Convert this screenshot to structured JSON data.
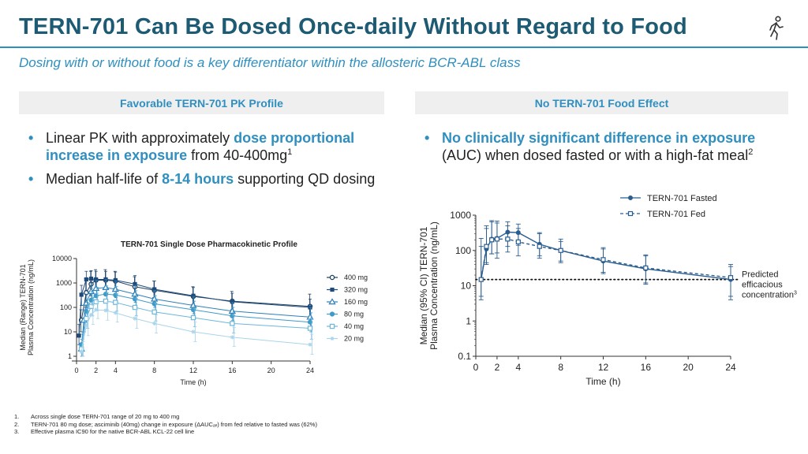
{
  "title": "TERN-701 Can Be Dosed Once-daily Without Regard to Food",
  "subtitle": "Dosing with or without food is a key differentiator within the allosteric BCR-ABL class",
  "icon": "walking-person-icon",
  "colors": {
    "title": "#1d5a73",
    "accent": "#2f8fc1",
    "panel": "#efefef"
  },
  "left_panel": {
    "header": "Favorable TERN-701 PK Profile",
    "bullet1": {
      "a": "Linear PK with approximately ",
      "b": "dose proportional increase in exposure",
      "c": " from 40-400mg",
      "sup": "1"
    },
    "bullet2": {
      "a": "Median half-life of ",
      "b": "8-14 hours",
      "c": " supporting QD dosing"
    }
  },
  "right_panel": {
    "header": "No TERN-701 Food Effect",
    "bullet1": {
      "b": "No clinically significant difference in exposure",
      "c": " (AUC) when dosed fasted or with a high-fat meal",
      "sup": "2"
    }
  },
  "chart_data": [
    {
      "type": "line",
      "title": "TERN-701 Single Dose Pharmacokinetic Profile",
      "xlabel": "Time (h)",
      "ylabel_line1": "Median (Range) TERN-701",
      "ylabel_line2": "Plasma Concentration (ng/mL)",
      "y_scale": "log",
      "xlim": [
        0,
        24
      ],
      "ylim": [
        1,
        10000
      ],
      "xticks": [
        "0",
        "2",
        "4",
        "8",
        "12",
        "16",
        "20",
        "24"
      ],
      "yticks": [
        "1",
        "10",
        "100",
        "1000",
        "10000"
      ],
      "legend_position": "right",
      "series": [
        {
          "name": "400 mg",
          "color": "#1d3f5e",
          "marker": "circle-open",
          "x": [
            0.5,
            1,
            1.5,
            2,
            3,
            4,
            6,
            8,
            12,
            16,
            24
          ],
          "y": [
            30,
            400,
            900,
            1300,
            1300,
            1200,
            700,
            500,
            280,
            180,
            110
          ],
          "lo": [
            10,
            100,
            300,
            500,
            600,
            600,
            350,
            250,
            130,
            80,
            40
          ],
          "hi": [
            80,
            1500,
            3000,
            3500,
            3500,
            3000,
            1800,
            1200,
            700,
            450,
            350
          ]
        },
        {
          "name": "320 mg",
          "color": "#1d4a7a",
          "marker": "square-filled",
          "x": [
            0.25,
            0.5,
            1,
            1.5,
            2,
            3,
            4,
            6,
            8,
            12,
            16,
            24
          ],
          "y": [
            7,
            330,
            1400,
            1500,
            1400,
            1400,
            1300,
            900,
            550,
            300,
            170,
            100
          ],
          "lo": [
            3,
            120,
            500,
            600,
            600,
            600,
            550,
            400,
            250,
            140,
            80,
            40
          ],
          "hi": [
            20,
            800,
            3000,
            3200,
            3000,
            3000,
            2800,
            2000,
            1200,
            650,
            380,
            220
          ]
        },
        {
          "name": "160 mg",
          "color": "#2f7fb8",
          "marker": "triangle-open",
          "x": [
            0.5,
            0.75,
            1,
            1.5,
            2,
            3,
            4,
            6,
            8,
            12,
            16,
            24
          ],
          "y": [
            2,
            30,
            150,
            450,
            600,
            650,
            550,
            350,
            220,
            120,
            70,
            40
          ],
          "lo": [
            1,
            10,
            60,
            180,
            250,
            300,
            250,
            160,
            100,
            55,
            30,
            15
          ],
          "hi": [
            5,
            80,
            350,
            1000,
            1300,
            1400,
            1200,
            800,
            500,
            280,
            160,
            100
          ]
        },
        {
          "name": "80 mg",
          "color": "#3f9ac8",
          "marker": "circle-filled",
          "x": [
            0.5,
            1,
            1.5,
            2,
            3,
            4,
            6,
            8,
            12,
            16,
            24
          ],
          "y": [
            3,
            70,
            200,
            300,
            350,
            320,
            220,
            140,
            80,
            45,
            25
          ],
          "lo": [
            1.5,
            30,
            90,
            140,
            160,
            150,
            100,
            65,
            35,
            20,
            10
          ],
          "hi": [
            8,
            160,
            450,
            650,
            750,
            700,
            480,
            300,
            180,
            100,
            60
          ]
        },
        {
          "name": "40 mg",
          "color": "#6cb7db",
          "marker": "square-open",
          "x": [
            0.5,
            1,
            1.5,
            2,
            3,
            4,
            6,
            8,
            12,
            16,
            24
          ],
          "y": [
            2,
            35,
            110,
            170,
            180,
            160,
            100,
            65,
            38,
            22,
            14
          ],
          "lo": [
            1,
            14,
            45,
            75,
            80,
            70,
            45,
            28,
            16,
            9,
            5
          ],
          "hi": [
            5,
            90,
            260,
            380,
            400,
            360,
            230,
            150,
            90,
            50,
            35
          ]
        },
        {
          "name": "20 mg",
          "color": "#a9d4ec",
          "marker": "star",
          "x": [
            0.5,
            1,
            1.5,
            2,
            3,
            4,
            6,
            8,
            12,
            16,
            24
          ],
          "y": [
            1.5,
            18,
            50,
            80,
            75,
            60,
            35,
            22,
            10,
            6,
            3
          ],
          "lo": [
            1,
            7,
            20,
            35,
            30,
            25,
            14,
            9,
            4,
            2.5,
            1.2
          ],
          "hi": [
            4,
            45,
            120,
            180,
            170,
            140,
            80,
            50,
            25,
            15,
            8
          ]
        }
      ]
    },
    {
      "type": "line",
      "xlabel": "Time (h)",
      "ylabel_line1": "Median (95% CI) TERN-701",
      "ylabel_line2": "Plasma Concentration (ng/mL)",
      "y_scale": "log",
      "xlim": [
        0,
        24
      ],
      "ylim": [
        0.1,
        1000
      ],
      "xticks": [
        "0",
        "2",
        "4",
        "8",
        "12",
        "16",
        "20",
        "24"
      ],
      "yticks": [
        "0.1",
        "1",
        "10",
        "100",
        "1000"
      ],
      "legend_position": "top",
      "threshold": {
        "y": 15,
        "label_line1": "Predicted",
        "label_line2": "efficacious",
        "label_line3": "concentration",
        "sup": "3"
      },
      "series": [
        {
          "name": "TERN-701 Fasted",
          "color": "#2a5d8f",
          "dash": "solid",
          "x": [
            0.5,
            1,
            1.5,
            2,
            3,
            4,
            6,
            8,
            12,
            16,
            24
          ],
          "y": [
            15,
            110,
            210,
            220,
            330,
            320,
            150,
            100,
            50,
            30,
            15
          ],
          "lo": [
            4,
            40,
            80,
            60,
            130,
            140,
            70,
            50,
            22,
            11,
            4
          ],
          "hi": [
            220,
            500,
            700,
            680,
            650,
            560,
            320,
            180,
            110,
            70,
            35
          ]
        },
        {
          "name": "TERN-701 Fed",
          "color": "#2a5d8f",
          "dash": "dashed",
          "x": [
            0.5,
            1,
            1.5,
            2,
            3,
            4,
            6,
            8,
            12,
            16,
            24
          ],
          "y": [
            15,
            130,
            200,
            210,
            210,
            175,
            130,
            100,
            55,
            32,
            17
          ],
          "lo": [
            5,
            45,
            80,
            85,
            90,
            70,
            60,
            45,
            24,
            12,
            5
          ],
          "hi": [
            130,
            420,
            650,
            600,
            500,
            420,
            300,
            210,
            120,
            75,
            40
          ]
        }
      ]
    }
  ],
  "footnotes": [
    {
      "n": "1.",
      "text": "Across single dose TERN-701 range of 20 mg to 400 mg"
    },
    {
      "n": "2.",
      "text": "TERN-701 80 mg dose; asciminib (40mg) change in exposure (ΔAUCₐₗₗ) from fed relative to fasted was (62%)"
    },
    {
      "n": "3.",
      "text": "Effective plasma IC90 for the native BCR-ABL KCL-22 cell line"
    }
  ]
}
